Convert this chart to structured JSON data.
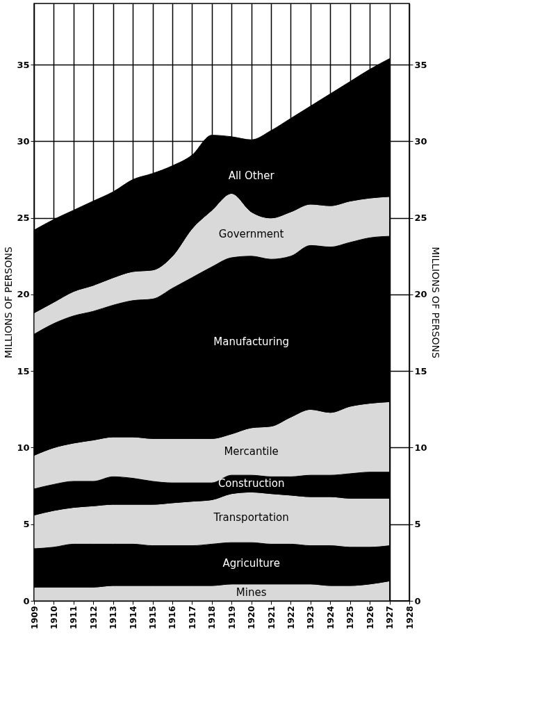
{
  "chart_data": {
    "type": "area",
    "stacked": true,
    "ylabel": "MILLIONS OF PERSONS",
    "y2label": "MILLIONS OF PERSONS",
    "x": [
      1909,
      1910,
      1911,
      1912,
      1913,
      1914,
      1915,
      1916,
      1917,
      1918,
      1919,
      1920,
      1921,
      1922,
      1923,
      1924,
      1925,
      1926,
      1927
    ],
    "xlim": [
      1909,
      1928
    ],
    "xticks": [
      1909,
      1910,
      1911,
      1912,
      1913,
      1914,
      1915,
      1916,
      1917,
      1918,
      1919,
      1920,
      1921,
      1922,
      1923,
      1924,
      1925,
      1926,
      1927,
      1928
    ],
    "ylim": [
      0,
      39
    ],
    "yticks": [
      0,
      5,
      10,
      15,
      20,
      25,
      30,
      35
    ],
    "y2lim": [
      0,
      39
    ],
    "y2ticks": [
      0,
      5,
      10,
      15,
      20,
      25,
      30,
      35
    ],
    "grid": true,
    "legend": false,
    "series": [
      {
        "name": "Mines",
        "color": "#d9d9d9",
        "values": [
          0.9,
          0.9,
          0.9,
          0.9,
          1.0,
          1.0,
          1.0,
          1.0,
          1.0,
          1.0,
          1.1,
          1.1,
          1.1,
          1.1,
          1.1,
          1.0,
          1.0,
          1.1,
          1.3
        ]
      },
      {
        "name": "Agriculture",
        "color": "#000000",
        "values": [
          2.5,
          2.6,
          2.8,
          2.8,
          2.7,
          2.7,
          2.6,
          2.6,
          2.6,
          2.7,
          2.7,
          2.7,
          2.6,
          2.6,
          2.5,
          2.6,
          2.5,
          2.4,
          2.3
        ]
      },
      {
        "name": "Transportation",
        "color": "#d9d9d9",
        "values": [
          2.2,
          2.4,
          2.4,
          2.5,
          2.6,
          2.6,
          2.7,
          2.8,
          2.9,
          2.9,
          3.2,
          3.3,
          3.3,
          3.2,
          3.2,
          3.2,
          3.2,
          3.2,
          3.1
        ]
      },
      {
        "name": "Construction",
        "color": "#000000",
        "values": [
          1.7,
          1.7,
          1.7,
          1.6,
          1.8,
          1.7,
          1.5,
          1.3,
          1.2,
          1.1,
          1.2,
          1.1,
          1.1,
          1.2,
          1.4,
          1.4,
          1.6,
          1.7,
          1.7
        ]
      },
      {
        "name": "Mercantile",
        "color": "#d9d9d9",
        "values": [
          2.2,
          2.4,
          2.5,
          2.7,
          2.6,
          2.7,
          2.8,
          2.9,
          2.9,
          2.9,
          2.7,
          3.1,
          3.3,
          3.9,
          4.3,
          4.1,
          4.4,
          4.5,
          4.6
        ]
      },
      {
        "name": "Manufacturing",
        "color": "#000000",
        "values": [
          7.9,
          8.1,
          8.3,
          8.4,
          8.6,
          8.9,
          9.1,
          9.8,
          10.5,
          11.2,
          11.5,
          11.2,
          10.9,
          10.5,
          10.7,
          10.8,
          10.7,
          10.8,
          10.8
        ]
      },
      {
        "name": "Government",
        "color": "#d9d9d9",
        "values": [
          1.4,
          1.4,
          1.6,
          1.7,
          1.8,
          1.9,
          1.9,
          2.1,
          3.2,
          3.7,
          4.2,
          2.9,
          2.7,
          2.9,
          2.7,
          2.7,
          2.7,
          2.6,
          2.6
        ]
      },
      {
        "name": "All Other",
        "color": "#000000",
        "values": [
          5.4,
          5.4,
          5.3,
          5.5,
          5.6,
          6.0,
          6.3,
          5.9,
          4.8,
          4.9,
          3.7,
          4.7,
          5.7,
          6.1,
          6.4,
          7.3,
          7.8,
          8.4,
          9.0
        ]
      }
    ]
  }
}
